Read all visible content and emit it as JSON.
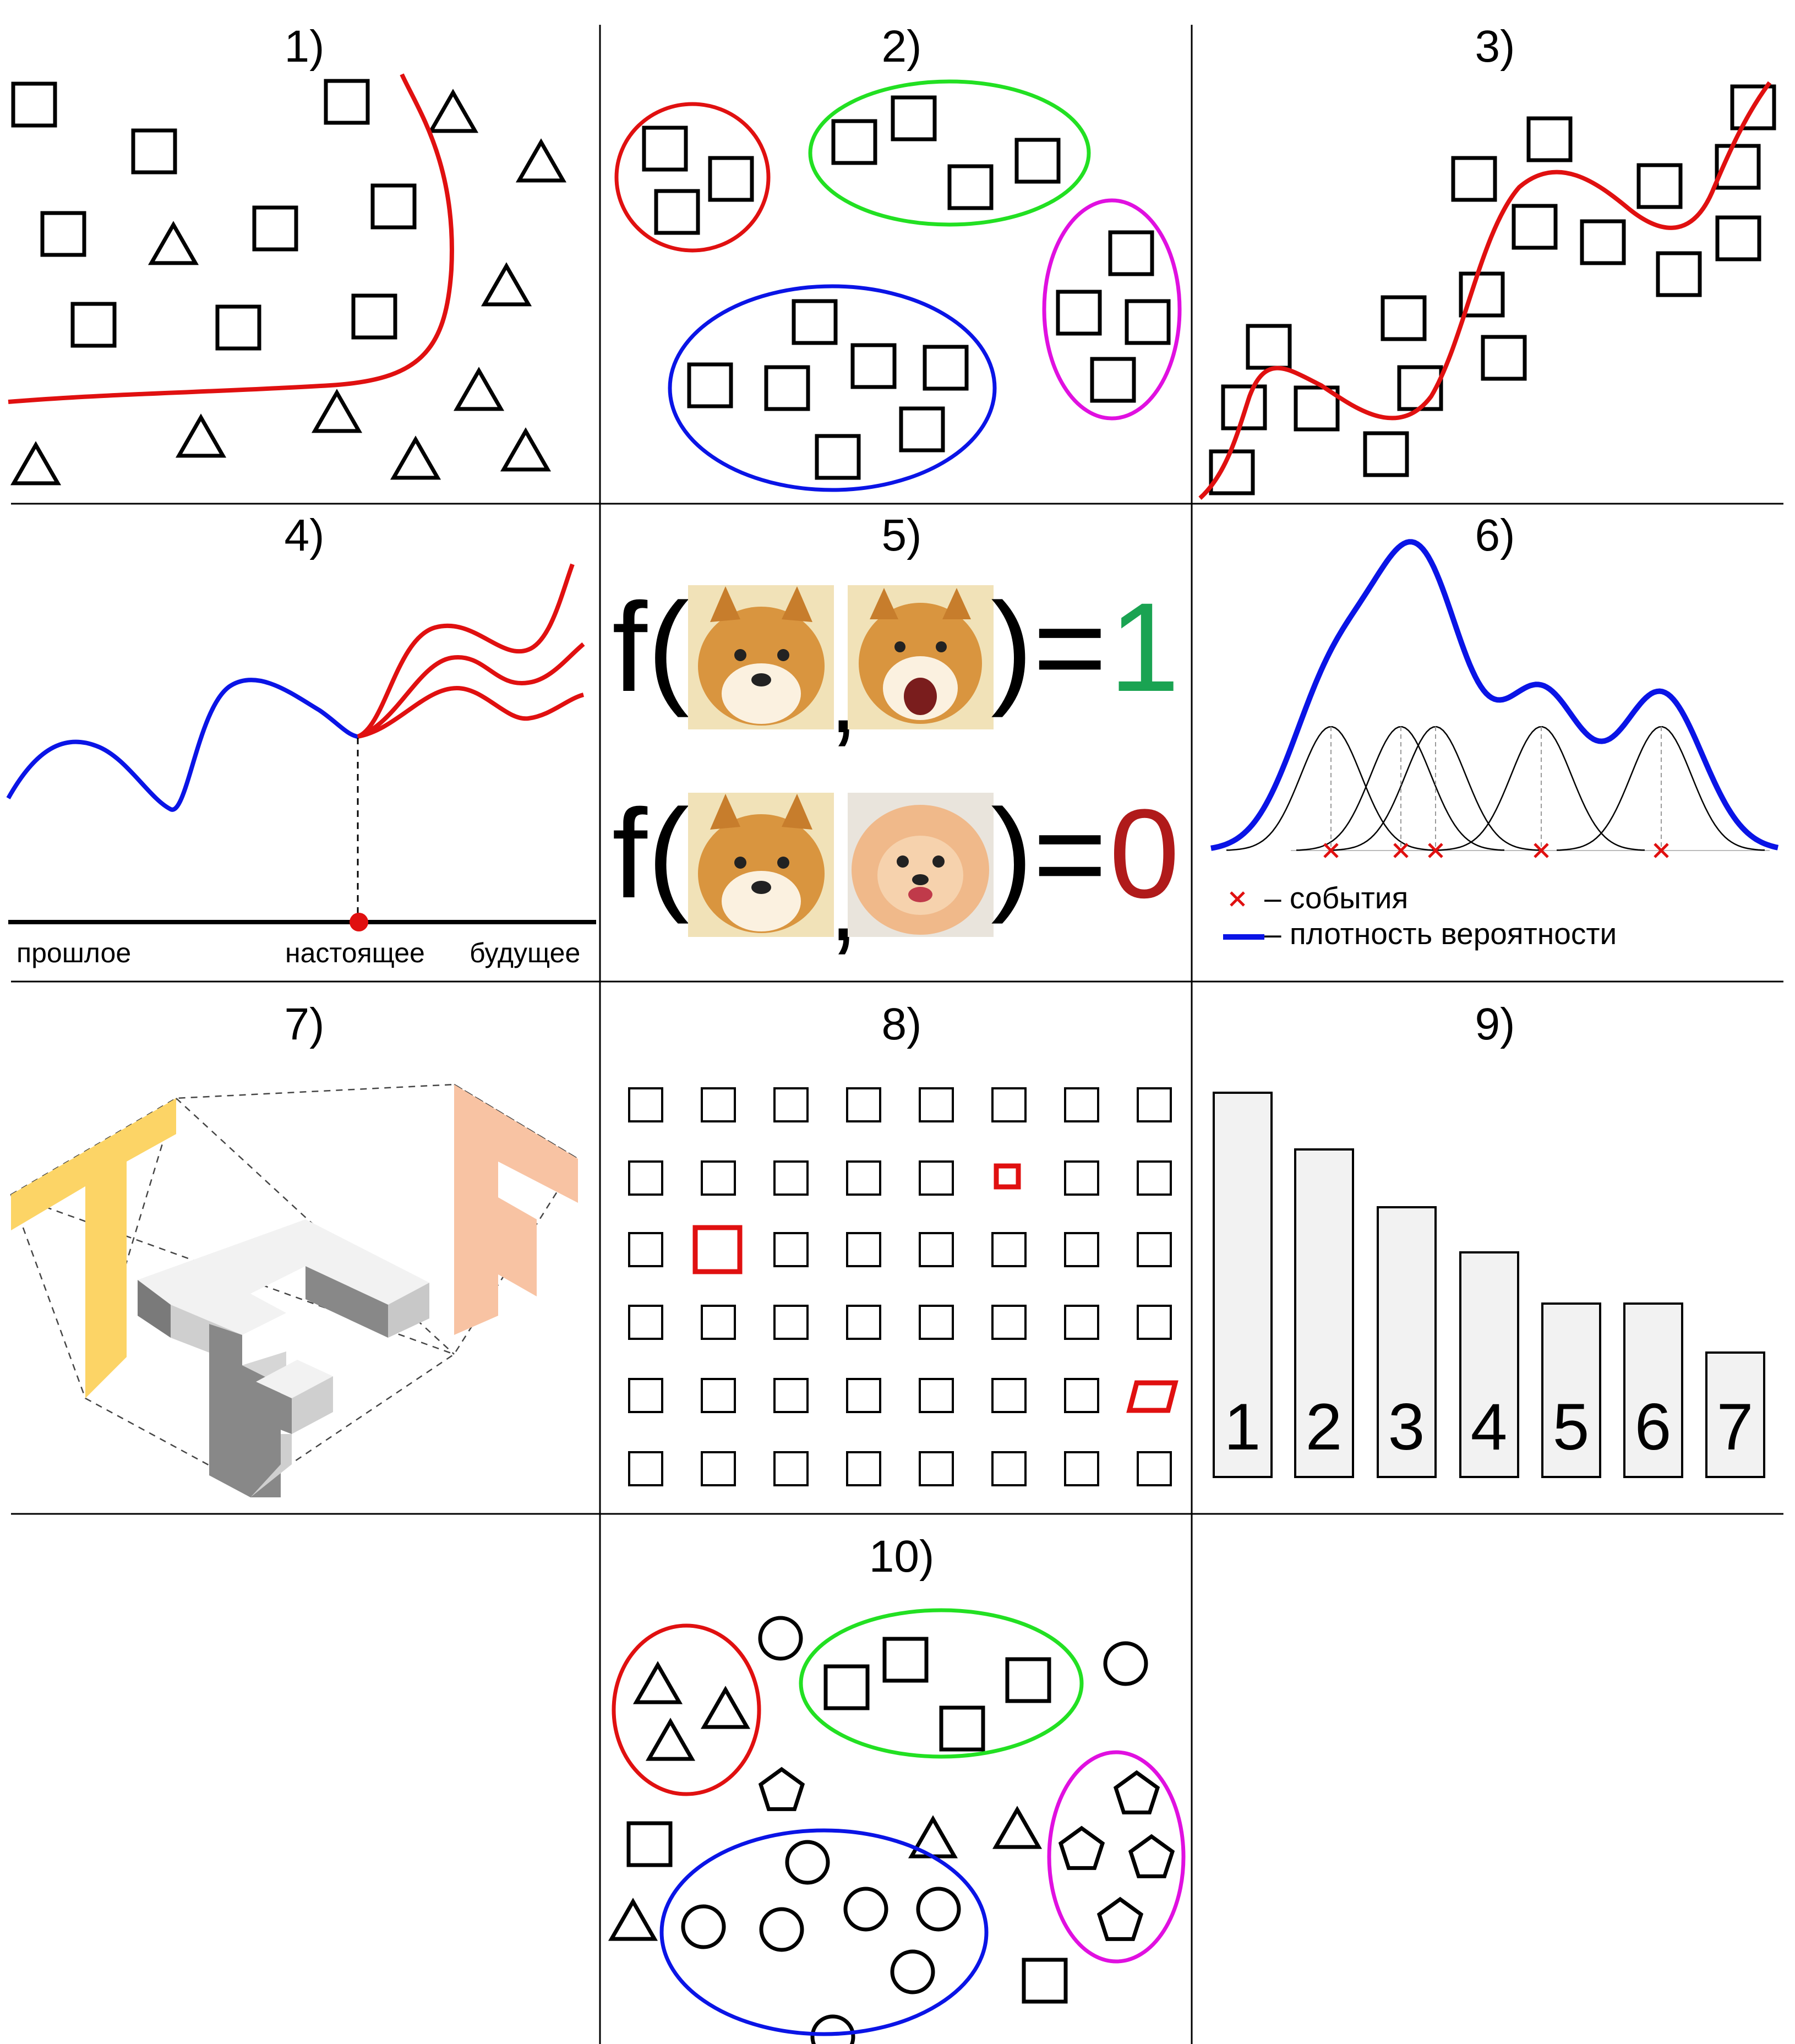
{
  "panels": [
    {
      "id": "p1",
      "number": "1)"
    },
    {
      "id": "p2",
      "number": "2)"
    },
    {
      "id": "p3",
      "number": "3)"
    },
    {
      "id": "p4",
      "number": "4)"
    },
    {
      "id": "p5",
      "number": "5)"
    },
    {
      "id": "p6",
      "number": "6)"
    },
    {
      "id": "p7",
      "number": "7)"
    },
    {
      "id": "p8",
      "number": "8)"
    },
    {
      "id": "p9",
      "number": "9)"
    },
    {
      "id": "p10",
      "number": "10)"
    }
  ],
  "timeline": {
    "past": "прошлое",
    "present": "настоящее",
    "future": "будущее"
  },
  "similarity": {
    "func": "f(",
    "comma": ",",
    "closing": ")=",
    "result_same": "1",
    "result_diff": "0",
    "colors": {
      "same": "#1aa352",
      "diff": "#b01a1a"
    }
  },
  "density": {
    "legend_events": "– события",
    "legend_density": "– плотность вероятности",
    "colors": {
      "events": "#e01010",
      "density": "#0a14e6"
    }
  },
  "ranking": {
    "labels": [
      "1",
      "2",
      "3",
      "4",
      "5",
      "6",
      "7"
    ]
  },
  "colors": {
    "red": "#e01010",
    "green": "#22e022",
    "blue": "#0a14e6",
    "magenta": "#e010e0"
  }
}
